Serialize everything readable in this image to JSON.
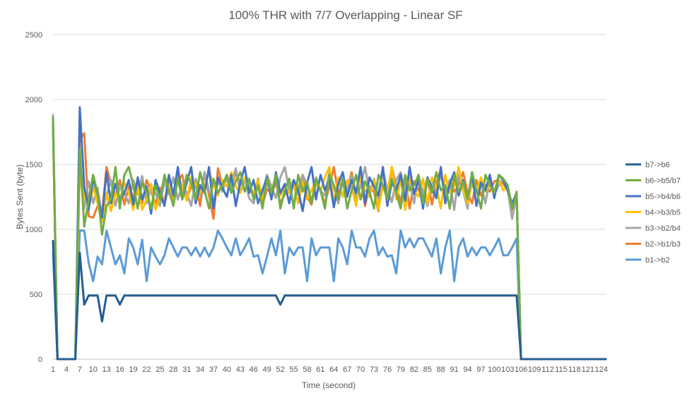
{
  "chart_data": {
    "type": "line",
    "title": "100% THR with 7/7 Overlapping - Linear SF",
    "xlabel": "Time (second)",
    "ylabel": "Bytes Sent (byte)",
    "ylim": [
      0,
      2500
    ],
    "yticks": [
      0,
      500,
      1000,
      1500,
      2000,
      2500
    ],
    "x_range": [
      1,
      125
    ],
    "xtick_labels": [
      "1",
      "4",
      "7",
      "10",
      "13",
      "16",
      "19",
      "22",
      "25",
      "28",
      "31",
      "34",
      "37",
      "40",
      "43",
      "46",
      "49",
      "52",
      "55",
      "58",
      "61",
      "64",
      "67",
      "70",
      "73",
      "76",
      "79",
      "82",
      "85",
      "88",
      "91",
      "94",
      "97",
      "100",
      "103",
      "106",
      "109",
      "112",
      "115",
      "118",
      "121",
      "124"
    ],
    "grid": "horizontal",
    "legend_position": "right",
    "series": [
      {
        "name": "b7->b6",
        "color": "#255e91",
        "width": 3,
        "values": [
          910,
          0,
          0,
          0,
          0,
          0,
          820,
          420,
          490,
          490,
          490,
          290,
          490,
          490,
          490,
          420,
          490,
          490,
          490,
          490,
          490,
          490,
          490,
          490,
          490,
          490,
          490,
          490,
          490,
          490,
          490,
          490,
          490,
          490,
          490,
          490,
          490,
          490,
          490,
          490,
          490,
          490,
          490,
          490,
          490,
          490,
          490,
          490,
          490,
          490,
          490,
          420,
          490,
          490,
          490,
          490,
          490,
          490,
          490,
          490,
          490,
          490,
          490,
          490,
          490,
          490,
          490,
          490,
          490,
          490,
          490,
          490,
          490,
          490,
          490,
          490,
          490,
          490,
          490,
          490,
          490,
          490,
          490,
          490,
          490,
          490,
          490,
          490,
          490,
          490,
          490,
          490,
          490,
          490,
          490,
          490,
          490,
          490,
          490,
          490,
          490,
          490,
          490,
          490,
          490,
          0
        ]
      },
      {
        "name": "b6->b5/b7",
        "color": "#70ad47",
        "width": 3,
        "values": [
          1860,
          0,
          0,
          0,
          0,
          0,
          1620,
          1020,
          1230,
          1420,
          1280,
          960,
          1180,
          1230,
          1480,
          1160,
          1420,
          1480,
          1340,
          1160,
          1360,
          1290,
          1160,
          1340,
          1230,
          1420,
          1300,
          1180,
          1390,
          1230,
          1420,
          1360,
          1230,
          1440,
          1300,
          1160,
          1390,
          1280,
          1340,
          1420,
          1280,
          1370,
          1440,
          1290,
          1390,
          1230,
          1340,
          1160,
          1390,
          1280,
          1420,
          1160,
          1300,
          1390,
          1160,
          1420,
          1290,
          1370,
          1200,
          1390,
          1300,
          1160,
          1420,
          1340,
          1230,
          1390,
          1160,
          1300,
          1420,
          1230,
          1370,
          1290,
          1160,
          1420,
          1340,
          1230,
          1390,
          1280,
          1160,
          1420,
          1300,
          1340,
          1420,
          1200,
          1390,
          1280,
          1440,
          1300,
          1340,
          1160,
          1420,
          1290,
          1370,
          1230,
          1440,
          1300,
          1160,
          1420,
          1340,
          1280,
          1420,
          1390,
          1340,
          1160,
          1280,
          0
        ]
      },
      {
        "name": "b5->b4/b6",
        "color": "#4472c4",
        "width": 3,
        "values": [
          1810,
          0,
          0,
          0,
          0,
          0,
          1940,
          1330,
          1150,
          1390,
          1270,
          1090,
          1440,
          1200,
          1350,
          1230,
          1280,
          1380,
          1190,
          1400,
          1230,
          1330,
          1120,
          1380,
          1280,
          1180,
          1420,
          1260,
          1480,
          1230,
          1360,
          1480,
          1200,
          1340,
          1280,
          1480,
          1160,
          1400,
          1320,
          1250,
          1420,
          1180,
          1360,
          1480,
          1280,
          1380,
          1200,
          1300,
          1400,
          1230,
          1440,
          1280,
          1350,
          1200,
          1380,
          1300,
          1140,
          1360,
          1480,
          1230,
          1420,
          1300,
          1390,
          1170,
          1350,
          1440,
          1250,
          1380,
          1280,
          1480,
          1200,
          1400,
          1330,
          1260,
          1480,
          1180,
          1360,
          1300,
          1420,
          1220,
          1480,
          1270,
          1380,
          1160,
          1400,
          1320,
          1240,
          1480,
          1200,
          1350,
          1440,
          1260,
          1380,
          1230,
          1420,
          1180,
          1360,
          1300,
          1420,
          1240,
          1420,
          1380,
          1300,
          1200,
          1280,
          0
        ]
      },
      {
        "name": "b4->b3/b5",
        "color": "#ffc000",
        "width": 3,
        "values": [
          1830,
          0,
          0,
          0,
          0,
          0,
          1500,
          1260,
          1160,
          1330,
          1200,
          1060,
          1280,
          1140,
          1280,
          1220,
          1360,
          1280,
          1150,
          1330,
          1150,
          1230,
          1350,
          1150,
          1260,
          1230,
          1360,
          1210,
          1430,
          1330,
          1220,
          1400,
          1350,
          1280,
          1330,
          1440,
          1350,
          1260,
          1380,
          1330,
          1440,
          1330,
          1280,
          1400,
          1350,
          1270,
          1380,
          1230,
          1350,
          1300,
          1400,
          1260,
          1330,
          1280,
          1350,
          1200,
          1360,
          1230,
          1300,
          1380,
          1290,
          1400,
          1480,
          1200,
          1400,
          1250,
          1380,
          1330,
          1180,
          1420,
          1300,
          1250,
          1380,
          1150,
          1340,
          1280,
          1480,
          1230,
          1380,
          1150,
          1400,
          1300,
          1250,
          1390,
          1200,
          1400,
          1330,
          1160,
          1420,
          1280,
          1330,
          1480,
          1300,
          1200,
          1350,
          1280,
          1400,
          1290,
          1350,
          1300,
          1380,
          1300,
          1330,
          1180,
          1260,
          0
        ]
      },
      {
        "name": "b3->b2/b4",
        "color": "#a5a5a5",
        "width": 3,
        "values": [
          1880,
          0,
          0,
          0,
          0,
          0,
          1470,
          1160,
          1370,
          1200,
          1320,
          1080,
          1260,
          1380,
          1180,
          1330,
          1280,
          1200,
          1380,
          1270,
          1410,
          1200,
          1330,
          1280,
          1180,
          1370,
          1270,
          1400,
          1230,
          1340,
          1280,
          1180,
          1390,
          1260,
          1440,
          1300,
          1180,
          1380,
          1290,
          1400,
          1340,
          1470,
          1280,
          1390,
          1240,
          1200,
          1350,
          1280,
          1420,
          1330,
          1240,
          1400,
          1480,
          1300,
          1380,
          1270,
          1420,
          1340,
          1210,
          1400,
          1300,
          1260,
          1440,
          1330,
          1200,
          1380,
          1290,
          1410,
          1230,
          1340,
          1480,
          1280,
          1390,
          1240,
          1460,
          1300,
          1210,
          1380,
          1440,
          1290,
          1360,
          1200,
          1410,
          1290,
          1180,
          1390,
          1280,
          1430,
          1260,
          1380,
          1150,
          1420,
          1300,
          1160,
          1440,
          1280,
          1360,
          1200,
          1390,
          1270,
          1340,
          1380,
          1300,
          1080,
          1270,
          0
        ]
      },
      {
        "name": "b2->b1/b3",
        "color": "#ed7d31",
        "width": 3,
        "values": [
          1800,
          0,
          0,
          0,
          0,
          0,
          1690,
          1740,
          1100,
          1090,
          1180,
          1120,
          1480,
          1350,
          1260,
          1380,
          1190,
          1330,
          1250,
          1360,
          1200,
          1380,
          1290,
          1200,
          1320,
          1190,
          1340,
          1270,
          1370,
          1420,
          1240,
          1330,
          1350,
          1180,
          1440,
          1260,
          1080,
          1470,
          1340,
          1380,
          1300,
          1440,
          1360,
          1300,
          1330,
          1250,
          1390,
          1190,
          1310,
          1280,
          1360,
          1200,
          1270,
          1300,
          1380,
          1310,
          1420,
          1250,
          1190,
          1360,
          1300,
          1200,
          1330,
          1480,
          1270,
          1370,
          1300,
          1440,
          1260,
          1380,
          1180,
          1330,
          1290,
          1140,
          1480,
          1200,
          1480,
          1330,
          1210,
          1390,
          1160,
          1370,
          1300,
          1250,
          1400,
          1190,
          1360,
          1460,
          1230,
          1380,
          1290,
          1340,
          1440,
          1280,
          1200,
          1380,
          1260,
          1340,
          1290,
          1370,
          1380,
          1350,
          1300,
          1150,
          1290,
          0
        ]
      },
      {
        "name": "b1->b2",
        "color": "#5b9bd5",
        "width": 3,
        "values": [
          820,
          0,
          0,
          0,
          0,
          0,
          990,
          990,
          740,
          600,
          790,
          730,
          990,
          860,
          730,
          800,
          660,
          930,
          860,
          730,
          920,
          600,
          860,
          790,
          730,
          800,
          930,
          860,
          790,
          860,
          860,
          800,
          860,
          790,
          860,
          790,
          860,
          990,
          930,
          860,
          800,
          930,
          800,
          860,
          930,
          790,
          800,
          660,
          790,
          930,
          800,
          990,
          660,
          860,
          800,
          860,
          860,
          600,
          930,
          800,
          860,
          860,
          860,
          600,
          930,
          860,
          730,
          990,
          860,
          860,
          790,
          930,
          990,
          800,
          860,
          790,
          800,
          660,
          990,
          860,
          930,
          860,
          930,
          930,
          860,
          790,
          930,
          660,
          860,
          990,
          600,
          860,
          930,
          790,
          860,
          800,
          860,
          860,
          800,
          860,
          930,
          800,
          800,
          860,
          930,
          0
        ]
      }
    ]
  }
}
